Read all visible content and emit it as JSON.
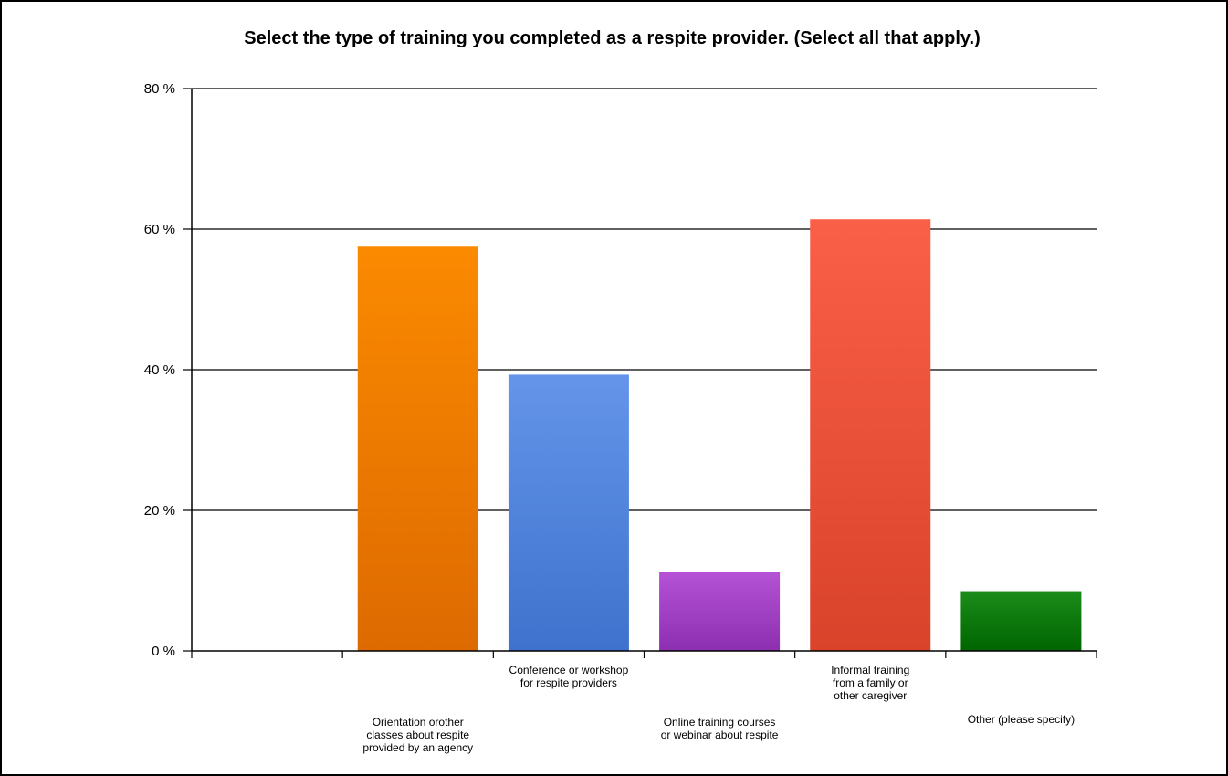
{
  "chart_data": {
    "type": "bar",
    "title": "Select the type of training you completed as a respite provider. (Select all that apply.)",
    "xlabel": "",
    "ylabel": "",
    "ylim": [
      0,
      80
    ],
    "yticks": [
      0,
      20,
      40,
      60,
      80
    ],
    "ytick_labels": [
      "0 %",
      "20 %",
      "40 %",
      "60 %",
      "80 %"
    ],
    "grid": true,
    "legend": "none",
    "categories": [
      [
        "Orientation orother",
        "classes about respite",
        "provided by an agency"
      ],
      [
        "Conference or workshop",
        "for respite providers"
      ],
      [
        "Online training courses",
        "or webinar about respite"
      ],
      [
        "Informal training",
        "from a family or",
        "other caregiver"
      ],
      [
        "Other (please specify)"
      ]
    ],
    "values": [
      57.5,
      39.3,
      11.3,
      61.4,
      8.5
    ],
    "colors": [
      [
        "#fb8a00",
        "#dd6a00"
      ],
      [
        "#6495ea",
        "#3e72cc"
      ],
      [
        "#b552d6",
        "#8d2fb1"
      ],
      [
        "#fa5f47",
        "#d9432a"
      ],
      [
        "#1a8c1a",
        "#006500"
      ]
    ]
  }
}
